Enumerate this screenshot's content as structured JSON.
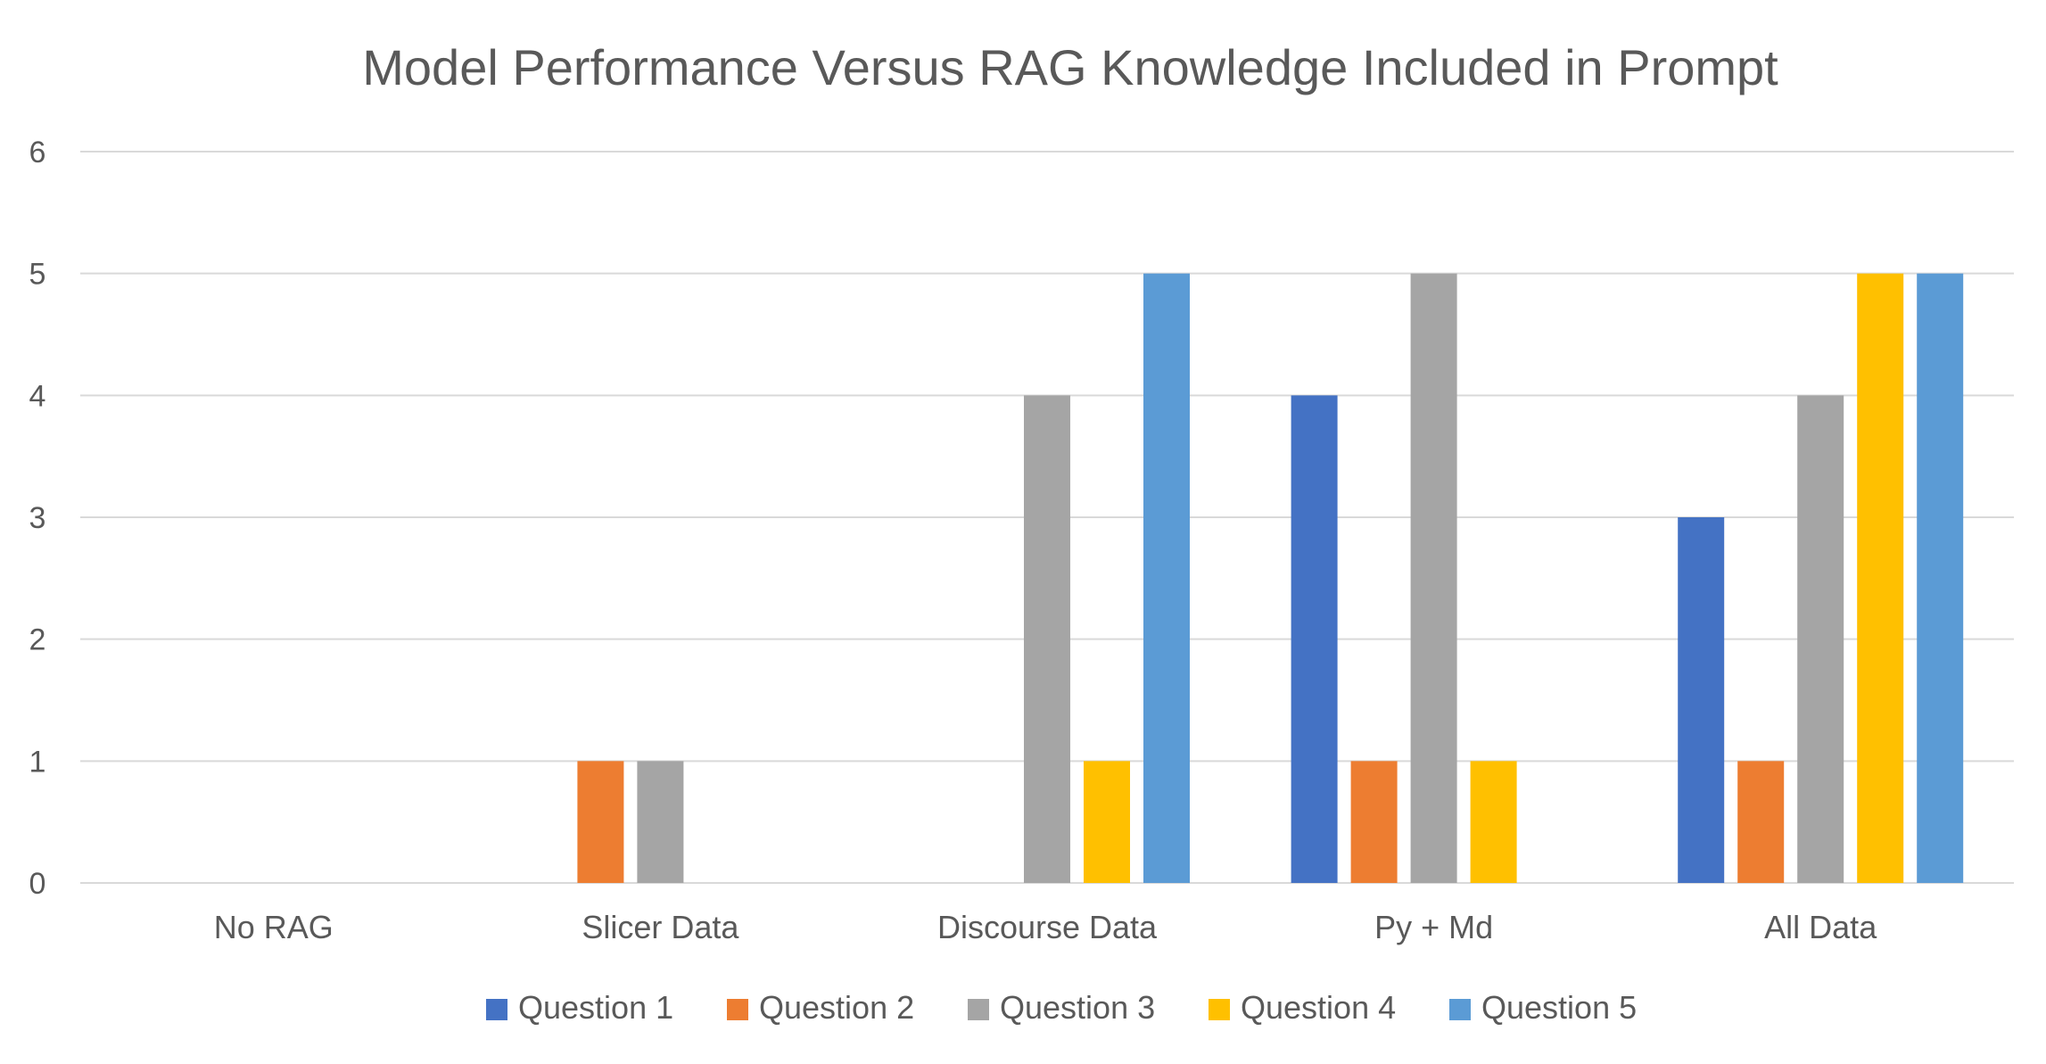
{
  "chart_data": {
    "type": "bar",
    "title": "Model Performance Versus RAG Knowledge Included in Prompt",
    "xlabel": "",
    "ylabel": "",
    "categories": [
      "No RAG",
      "Slicer Data",
      "Discourse Data",
      "Py + Md",
      "All Data"
    ],
    "series": [
      {
        "name": "Question 1",
        "color": "#4472c4",
        "values": [
          0,
          0,
          0,
          4,
          3
        ]
      },
      {
        "name": "Question 2",
        "color": "#ed7d31",
        "values": [
          0,
          1,
          0,
          1,
          1
        ]
      },
      {
        "name": "Question 3",
        "color": "#a5a5a5",
        "values": [
          0,
          1,
          4,
          5,
          4
        ]
      },
      {
        "name": "Question 4",
        "color": "#ffc000",
        "values": [
          0,
          0,
          1,
          1,
          5
        ]
      },
      {
        "name": "Question 5",
        "color": "#5b9bd5",
        "values": [
          0,
          0,
          5,
          0,
          5
        ]
      }
    ],
    "ylim": [
      0,
      6
    ],
    "yticks": [
      0,
      1,
      2,
      3,
      4,
      5,
      6
    ],
    "grid": true,
    "legend_position": "bottom"
  }
}
